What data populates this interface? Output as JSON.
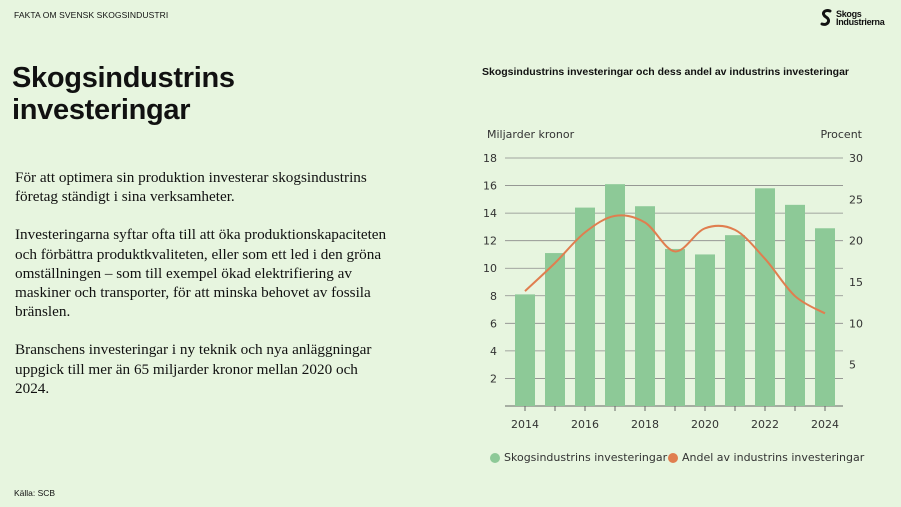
{
  "header": {
    "kicker": "FAKTA OM SVENSK SKOGSINDUSTRI",
    "logo_text": "Skogs Industrierna"
  },
  "title": "Skogsindustrins investeringar",
  "paragraphs": [
    "För att optimera sin produktion investerar skogs­industrins företag ständigt i sina verksamheter.",
    "Investeringarna syftar ofta till att öka produktions­kapaciteten och förbättra produktkvaliteten, eller som ett led i den gröna omställningen – som till exempel ökad elektrifiering av maskiner och transporter, för att minska behovet av fossila bränslen.",
    "Branschens investeringar i ny teknik och nya anläggningar uppgick till mer än 65 miljarder kronor  mellan 2020 och 2024."
  ],
  "source": "Källa: SCB",
  "colors": {
    "background": "#e7f5df",
    "bars": "#8dc997",
    "line": "#e07e4f"
  },
  "chart_data": {
    "type": "bar+line",
    "title": "Skogsindustrins investeringar och dess andel av industrins investeringar",
    "ylabel_left": "Miljarder kronor",
    "ylabel_right": "Procent",
    "ylim_left": [
      0,
      18
    ],
    "ylim_right": [
      0,
      30
    ],
    "yticks_left": [
      "2",
      "4",
      "6",
      "8",
      "10",
      "12",
      "14",
      "16",
      "18"
    ],
    "yticks_right": [
      "5",
      "10",
      "15",
      "20",
      "25",
      "30"
    ],
    "x": [
      2014,
      2015,
      2016,
      2017,
      2018,
      2019,
      2020,
      2021,
      2022,
      2023,
      2024
    ],
    "xticks": [
      "2014",
      "2016",
      "2018",
      "2020",
      "2022",
      "2024"
    ],
    "grid": true,
    "legend_position": "bottom",
    "series": [
      {
        "name": "Skogsindustrins investeringar",
        "type": "bar",
        "axis": "left",
        "values": [
          8.1,
          11.1,
          14.4,
          16.1,
          14.5,
          11.4,
          11.0,
          12.4,
          15.8,
          14.6,
          12.9
        ]
      },
      {
        "name": "Andel av industrins investeringar",
        "type": "line",
        "axis": "right",
        "values": [
          13.9,
          17.3,
          21.0,
          23.0,
          22.2,
          18.7,
          21.5,
          21.3,
          17.8,
          13.3,
          11.2
        ]
      }
    ]
  }
}
